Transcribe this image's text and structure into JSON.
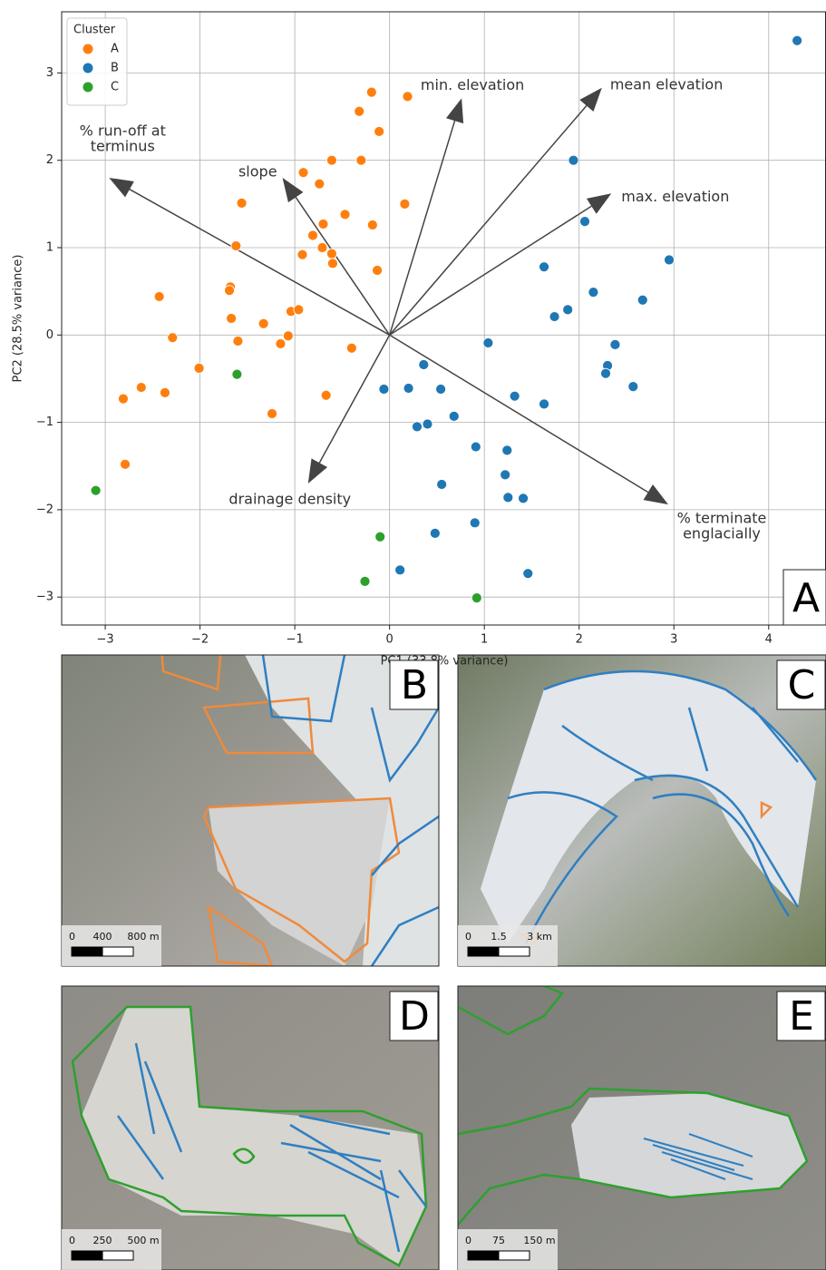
{
  "chart_data": {
    "type": "scatter",
    "xlabel": "PC1 (33.8% variance)",
    "ylabel": "PC2 (28.5% variance)",
    "xlim": [
      -3.46,
      4.6
    ],
    "ylim": [
      -3.32,
      3.7
    ],
    "xticks": [
      {
        "value": -3,
        "label": "−3"
      },
      {
        "value": -2,
        "label": "−2"
      },
      {
        "value": -1,
        "label": "−1"
      },
      0,
      1,
      2,
      3,
      4
    ],
    "yticks": [
      {
        "value": -3,
        "label": "−3"
      },
      {
        "value": -2,
        "label": "−2"
      },
      {
        "value": -1,
        "label": "−1"
      },
      0,
      1,
      2,
      3
    ],
    "grid": true,
    "legend_title": "Cluster",
    "legend_position": "upper-left",
    "panel_label": "A",
    "series": [
      {
        "name": "A",
        "color": "#ff7f0e",
        "x": [
          -0.19,
          0.19,
          -0.32,
          -0.11,
          -0.61,
          -0.3,
          -0.91,
          -0.74,
          0.16,
          -1.56,
          -0.47,
          -0.7,
          -0.18,
          -0.81,
          -1.62,
          -0.71,
          -0.92,
          -0.61,
          -0.6,
          -0.13,
          -1.68,
          -1.69,
          -2.43,
          -1.67,
          -1.33,
          -1.04,
          -0.96,
          -2.29,
          -1.6,
          -1.07,
          -1.15,
          -0.4,
          -2.01,
          -2.81,
          -2.62,
          -2.37,
          -0.67,
          -1.24,
          -2.79
        ],
        "y": [
          2.78,
          2.73,
          2.56,
          2.33,
          2.0,
          2.0,
          1.86,
          1.73,
          1.5,
          1.51,
          1.38,
          1.27,
          1.26,
          1.14,
          1.02,
          1.0,
          0.92,
          0.93,
          0.82,
          0.74,
          0.55,
          0.51,
          0.44,
          0.19,
          0.13,
          0.27,
          0.29,
          -0.03,
          -0.07,
          -0.01,
          -0.1,
          -0.15,
          -0.38,
          -0.73,
          -0.6,
          -0.66,
          -0.69,
          -0.9,
          -1.48
        ]
      },
      {
        "name": "B",
        "color": "#1f77b4",
        "x": [
          4.3,
          1.94,
          2.06,
          2.95,
          1.63,
          2.15,
          2.67,
          1.88,
          1.74,
          1.04,
          2.38,
          2.3,
          2.28,
          2.57,
          0.36,
          -0.06,
          0.2,
          0.54,
          1.32,
          1.63,
          0.29,
          0.4,
          0.68,
          0.91,
          1.24,
          1.22,
          0.55,
          1.25,
          1.41,
          0.9,
          0.48,
          0.11,
          1.46
        ],
        "y": [
          3.37,
          2.0,
          1.3,
          0.86,
          0.78,
          0.49,
          0.4,
          0.29,
          0.21,
          -0.09,
          -0.11,
          -0.35,
          -0.44,
          -0.59,
          -0.34,
          -0.62,
          -0.61,
          -0.62,
          -0.7,
          -0.79,
          -1.05,
          -1.02,
          -0.93,
          -1.28,
          -1.32,
          -1.6,
          -1.71,
          -1.86,
          -1.87,
          -2.15,
          -2.27,
          -2.69,
          -2.73
        ]
      },
      {
        "name": "C",
        "color": "#2ca02c",
        "x": [
          -1.61,
          -3.1,
          -0.1,
          -0.26,
          0.92
        ],
        "y": [
          -0.45,
          -1.78,
          -2.31,
          -2.82,
          -3.01
        ]
      }
    ],
    "arrows": [
      {
        "label": [
          "min. elevation"
        ],
        "x": 0.76,
        "y": 2.71
      },
      {
        "label": [
          "mean elevation"
        ],
        "x": 2.24,
        "y": 2.83
      },
      {
        "label": [
          "max. elevation"
        ],
        "x": 2.34,
        "y": 1.62
      },
      {
        "label": [
          "% run-off at",
          "terminus"
        ],
        "x": -2.96,
        "y": 1.8
      },
      {
        "label": [
          "slope"
        ],
        "x": -1.13,
        "y": 1.8
      },
      {
        "label": [
          "drainage density"
        ],
        "x": -0.86,
        "y": -1.7
      },
      {
        "label": [
          "% terminate",
          "englacially"
        ],
        "x": 2.94,
        "y": -1.94
      }
    ]
  },
  "map_panels": [
    {
      "label": "B",
      "scale_labels": [
        "0",
        "400",
        "800 m"
      ]
    },
    {
      "label": "C",
      "scale_labels": [
        "0",
        "1.5",
        "3 km"
      ]
    },
    {
      "label": "D",
      "scale_labels": [
        "0",
        "250",
        "500 m"
      ]
    },
    {
      "label": "E",
      "scale_labels": [
        "0",
        "75",
        "150 m"
      ]
    }
  ]
}
